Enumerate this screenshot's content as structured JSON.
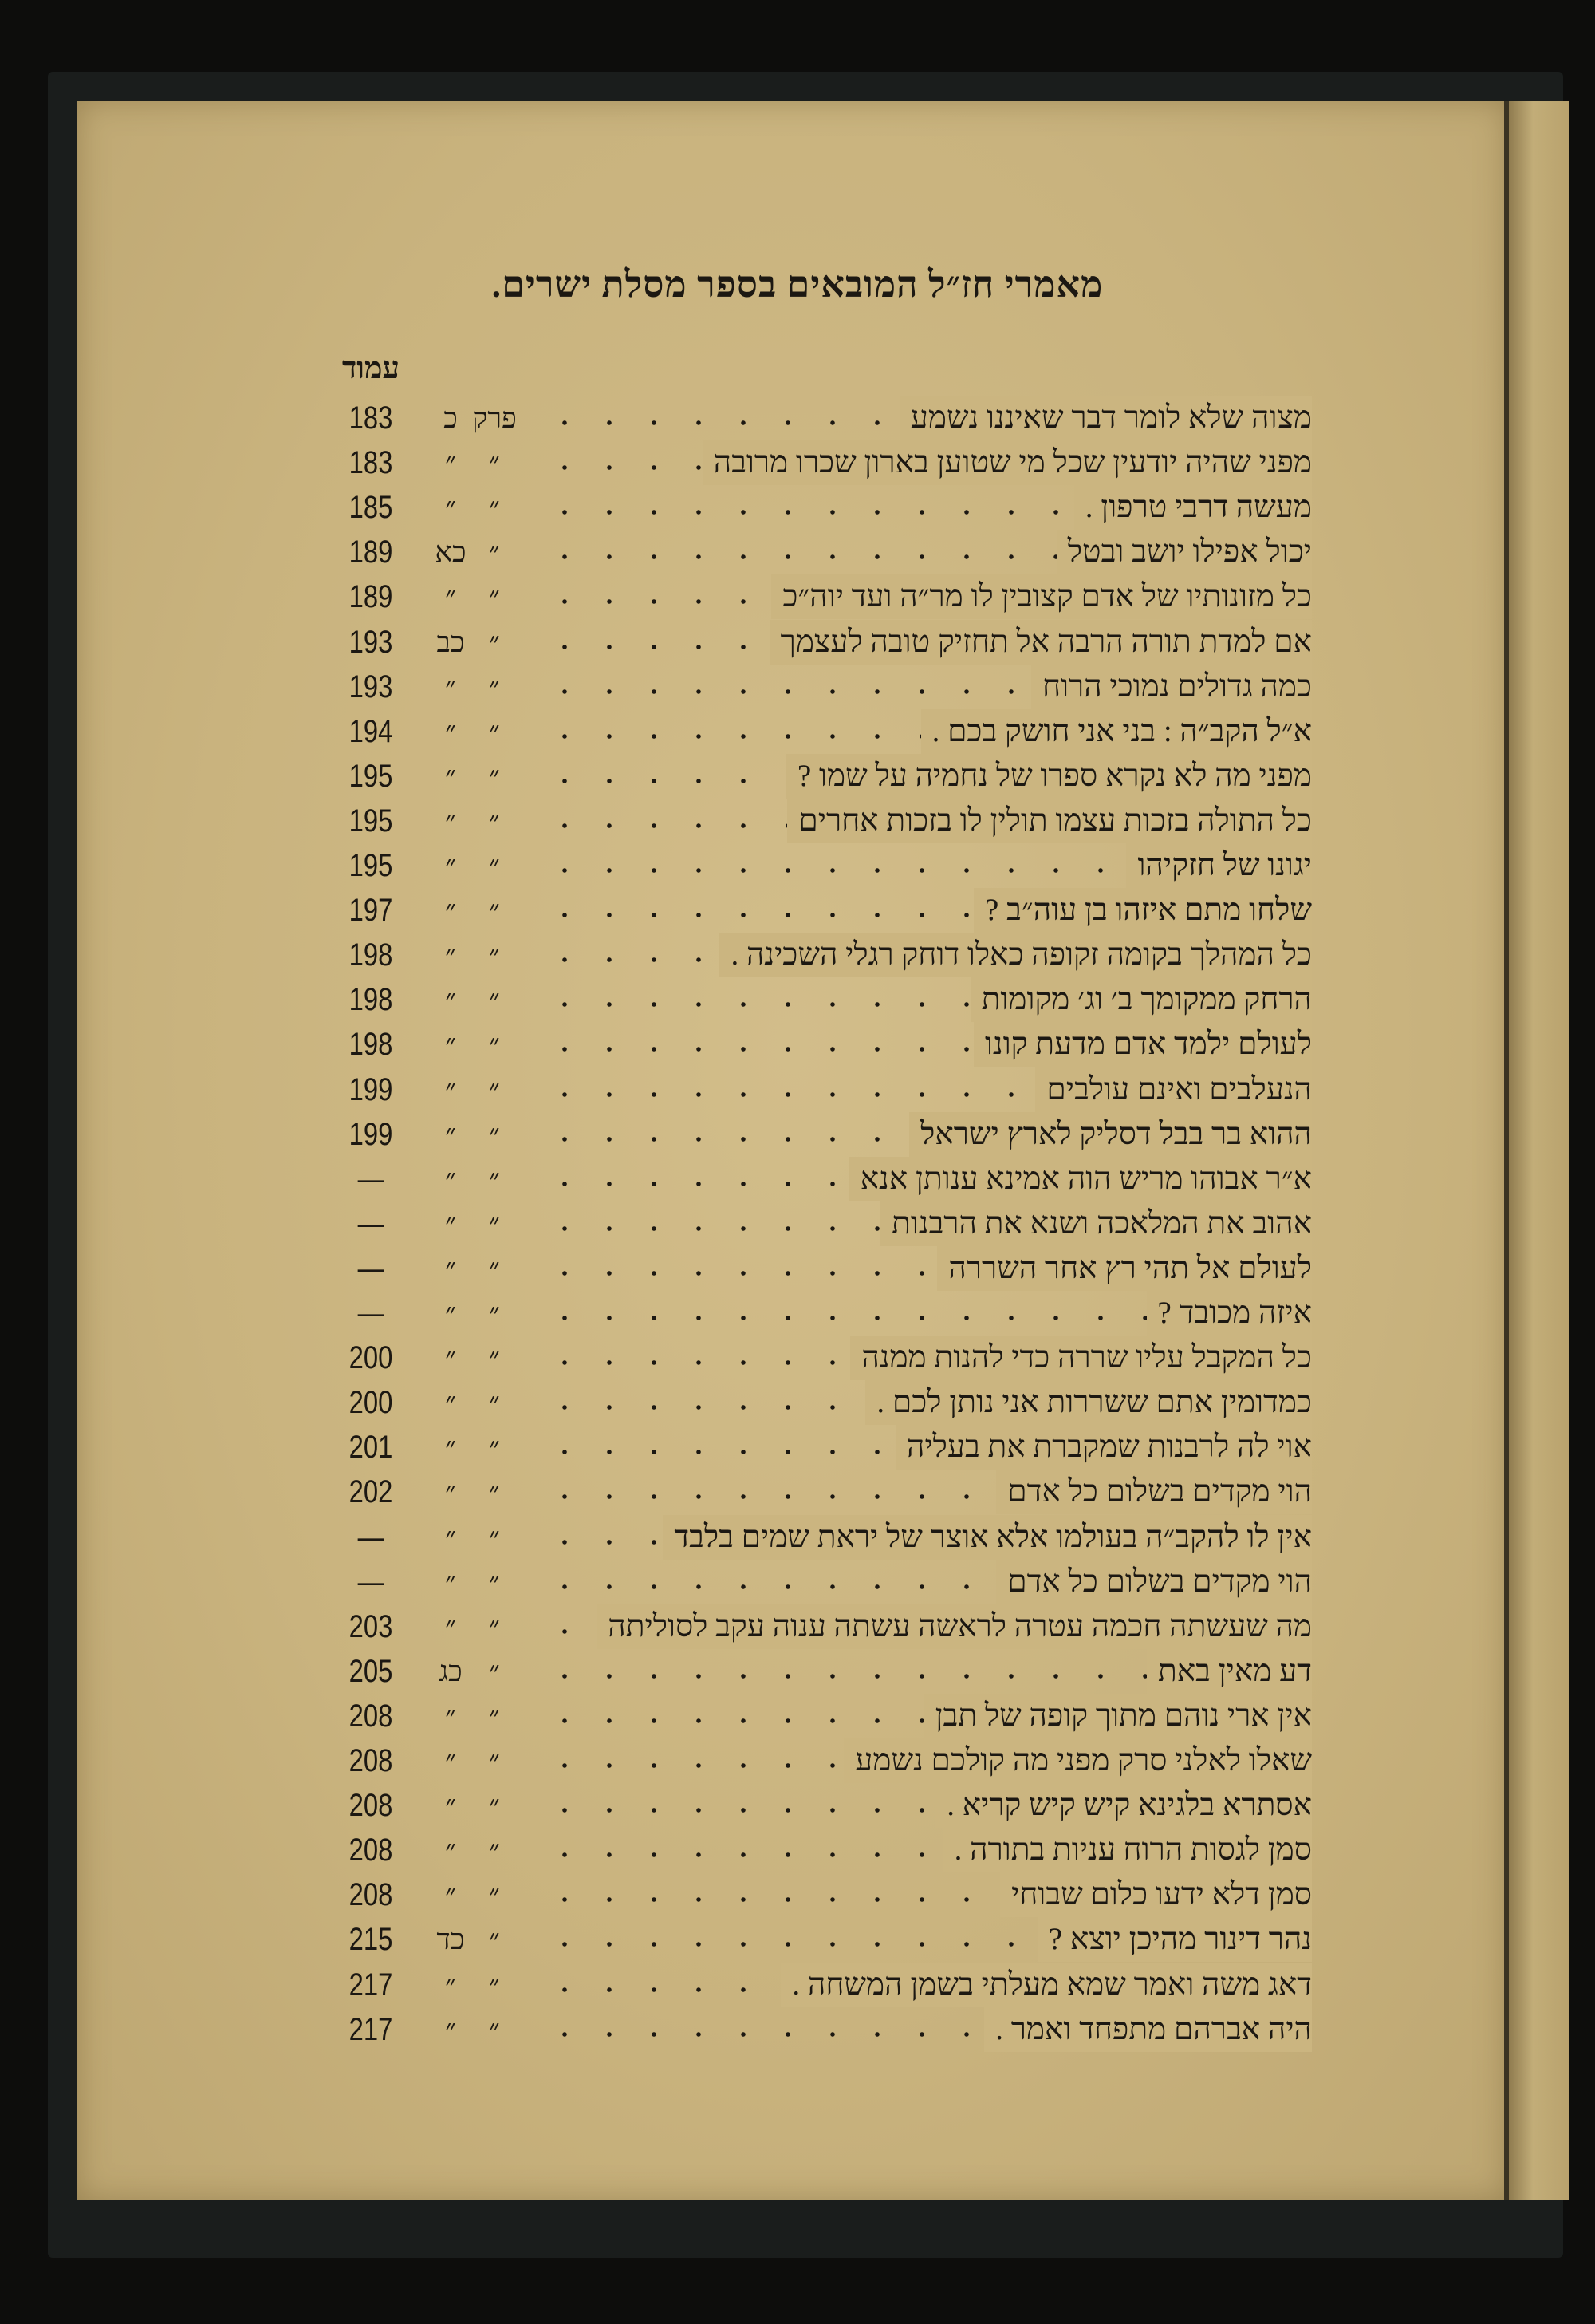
{
  "page": {
    "title": "מאמרי חז״ל המובאים בספר מסלת ישרים.",
    "column_header": "עמוד",
    "paper_color": "#c9b37e",
    "entries": [
      {
        "text": "מצוה שלא לומר דבר שאיננו נשמע",
        "c1": "פרק",
        "c2": "כ",
        "page": "183"
      },
      {
        "text": "מפני שהיה יודעין שכל מי שטוען בארון שכרו מרובה",
        "c1": "״",
        "c2": "״",
        "page": "183"
      },
      {
        "text": "מעשה דרבי טרפון .",
        "c1": "״",
        "c2": "״",
        "page": "185"
      },
      {
        "text": "יכול אפילו יושב ובטל",
        "c1": "״",
        "c2": "כא",
        "page": "189"
      },
      {
        "text": "כל מזונותיו של אדם קצובין לו מר״ה ועד יוה״כ",
        "c1": "״",
        "c2": "״",
        "page": "189"
      },
      {
        "text": "אם למדת תורה הרבה אל תחזיק טובה לעצמך",
        "c1": "״",
        "c2": "כב",
        "page": "193"
      },
      {
        "text": "כמה גדולים נמוכי הרוח",
        "c1": "״",
        "c2": "״",
        "page": "193"
      },
      {
        "text": "א״ל הקב״ה : בני אני חושק בכם .",
        "c1": "״",
        "c2": "״",
        "page": "194"
      },
      {
        "text": "מפני מה לא נקרא ספרו של נחמיה על שמו ?",
        "c1": "״",
        "c2": "״",
        "page": "195"
      },
      {
        "text": "כל התולה בזכות עצמו תולין לו בזכות אחרים",
        "c1": "״",
        "c2": "״",
        "page": "195"
      },
      {
        "text": "יגונו של חזקיהו",
        "c1": "״",
        "c2": "״",
        "page": "195"
      },
      {
        "text": "שלחו מתם איזהו בן עוה״ב ?",
        "c1": "״",
        "c2": "״",
        "page": "197"
      },
      {
        "text": "כל המהלך בקומה זקופה כאלו דוחק רגלי השכינה .",
        "c1": "״",
        "c2": "״",
        "page": "198"
      },
      {
        "text": "הרחק ממקומך ב׳ וג׳ מקומות",
        "c1": "״",
        "c2": "״",
        "page": "198"
      },
      {
        "text": "לעולם ילמד אדם מדעת קונו",
        "c1": "״",
        "c2": "״",
        "page": "198"
      },
      {
        "text": "הנעלבים ואינם עולבים",
        "c1": "״",
        "c2": "״",
        "page": "199"
      },
      {
        "text": "ההוא בר בבל דסליק לארץ ישראל",
        "c1": "״",
        "c2": "״",
        "page": "199"
      },
      {
        "text": "א״ר אבוהו מריש הוה אמינא ענותן אנא",
        "c1": "״",
        "c2": "״",
        "page": "—"
      },
      {
        "text": "אהוב את המלאכה ושנא את הרבנות",
        "c1": "״",
        "c2": "״",
        "page": "—"
      },
      {
        "text": "לעולם אל תהי רץ אחר השררה",
        "c1": "״",
        "c2": "״",
        "page": "—"
      },
      {
        "text": "איזה מכובד ?",
        "c1": "״",
        "c2": "״",
        "page": "—"
      },
      {
        "text": "כל המקבל עליו שררה כדי להנות ממנה",
        "c1": "״",
        "c2": "״",
        "page": "200"
      },
      {
        "text": "כמדומין אתם ששררות אני נותן לכם .",
        "c1": "״",
        "c2": "״",
        "page": "200"
      },
      {
        "text": "אוי לה לרבנות שמקברת את בעליה",
        "c1": "״",
        "c2": "״",
        "page": "201"
      },
      {
        "text": "הוי מקדים בשלום כל אדם",
        "c1": "״",
        "c2": "״",
        "page": "202"
      },
      {
        "text": "אין לו להקב״ה בעולמו אלא אוצר של יראת שמים בלבד",
        "c1": "״",
        "c2": "״",
        "page": "—"
      },
      {
        "text": "הוי מקדים בשלום כל אדם",
        "c1": "״",
        "c2": "״",
        "page": "—"
      },
      {
        "text": "מה שעשתה חכמה עטרה לראשה עשתה ענוה עקב לסוליתה",
        "c1": "״",
        "c2": "״",
        "page": "203"
      },
      {
        "text": "דע מאין באת",
        "c1": "״",
        "c2": "כג",
        "page": "205"
      },
      {
        "text": "אין ארי נוהם מתוך קופה של תבן",
        "c1": "״",
        "c2": "״",
        "page": "208"
      },
      {
        "text": "שאלו לאלני סרק מפני מה קולכם נשמע",
        "c1": "״",
        "c2": "״",
        "page": "208"
      },
      {
        "text": "אסתרא בלגינא קיש קיש קריא .",
        "c1": "״",
        "c2": "״",
        "page": "208"
      },
      {
        "text": "סמן לגסות הרוח עניות בתורה .",
        "c1": "״",
        "c2": "״",
        "page": "208"
      },
      {
        "text": "סמן דלא ידעו כלום שבוחי",
        "c1": "״",
        "c2": "״",
        "page": "208"
      },
      {
        "text": "נהר דינור מהיכן יוצא ?",
        "c1": "״",
        "c2": "כד",
        "page": "215"
      },
      {
        "text": "דאג משה ואמר שמא מעלתי בשמן המשחה .",
        "c1": "״",
        "c2": "״",
        "page": "217"
      },
      {
        "text": "היה אברהם מתפחד ואמר .",
        "c1": "״",
        "c2": "״",
        "page": "217"
      }
    ]
  }
}
